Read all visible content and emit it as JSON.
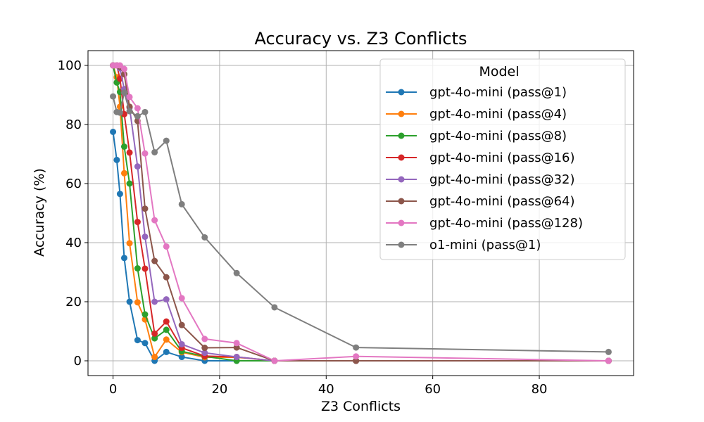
{
  "chart_data": {
    "type": "line",
    "title": "Accuracy vs. Z3 Conflicts",
    "xlabel": "Z3 Conflicts",
    "ylabel": "Accuracy (%)",
    "xlim": [
      -4.7,
      97.7
    ],
    "ylim": [
      -5,
      105
    ],
    "xticks": [
      0,
      20,
      40,
      60,
      80
    ],
    "yticks": [
      0,
      20,
      40,
      60,
      80,
      100
    ],
    "grid": true,
    "legend": {
      "title": "Model",
      "placement": "top-right"
    },
    "x": [
      0,
      0.7,
      1.3,
      2.1,
      3.1,
      4.6,
      6.0,
      7.8,
      10.0,
      12.9,
      17.2,
      23.2,
      30.3,
      45.6,
      93.0
    ],
    "series": [
      {
        "name": "gpt-4o-mini (pass@1)",
        "color": "#1f77b4",
        "values": [
          77.5,
          68,
          56.5,
          34.8,
          20,
          7,
          6,
          0,
          3,
          1.3,
          0,
          0,
          0,
          0,
          0
        ]
      },
      {
        "name": "gpt-4o-mini (pass@4)",
        "color": "#ff7f0e",
        "values": [
          100,
          96,
          86,
          63.5,
          39.8,
          19.8,
          14,
          1.3,
          7.2,
          2.9,
          1.2,
          1.2,
          0,
          0,
          0
        ]
      },
      {
        "name": "gpt-4o-mini (pass@8)",
        "color": "#2ca02c",
        "values": [
          100,
          94.2,
          91,
          72.5,
          60,
          31.3,
          15.7,
          7.6,
          10.5,
          3.2,
          1.5,
          0,
          0,
          0,
          0
        ]
      },
      {
        "name": "gpt-4o-mini (pass@16)",
        "color": "#d62728",
        "values": [
          100,
          100,
          95.5,
          83.5,
          70.5,
          47,
          31.2,
          9.2,
          13.3,
          4.4,
          1.6,
          1.3,
          0,
          0,
          0
        ]
      },
      {
        "name": "gpt-4o-mini (pass@32)",
        "color": "#9467bd",
        "values": [
          100,
          100,
          99,
          92,
          85.7,
          65.8,
          42,
          20,
          20.8,
          5.6,
          2.7,
          1.3,
          0,
          0,
          0
        ]
      },
      {
        "name": "gpt-4o-mini (pass@64)",
        "color": "#8c564b",
        "values": [
          100,
          100,
          99.5,
          97,
          86,
          81.2,
          51.5,
          33.8,
          28.3,
          12.1,
          4.4,
          4.5,
          0,
          0,
          0
        ]
      },
      {
        "name": "gpt-4o-mini (pass@128)",
        "color": "#e377c2",
        "values": [
          100,
          100,
          100,
          98.8,
          89.3,
          85.5,
          70.2,
          47.6,
          38.7,
          21.2,
          7.4,
          6,
          0,
          1.5,
          0
        ]
      },
      {
        "name": "o1-mini (pass@1)",
        "color": "#7f7f7f",
        "values": [
          89.5,
          84.2,
          84,
          90.8,
          84.5,
          82.8,
          84.2,
          70.6,
          74.5,
          53,
          41.8,
          29.7,
          18.1,
          4.5,
          3
        ]
      }
    ]
  }
}
